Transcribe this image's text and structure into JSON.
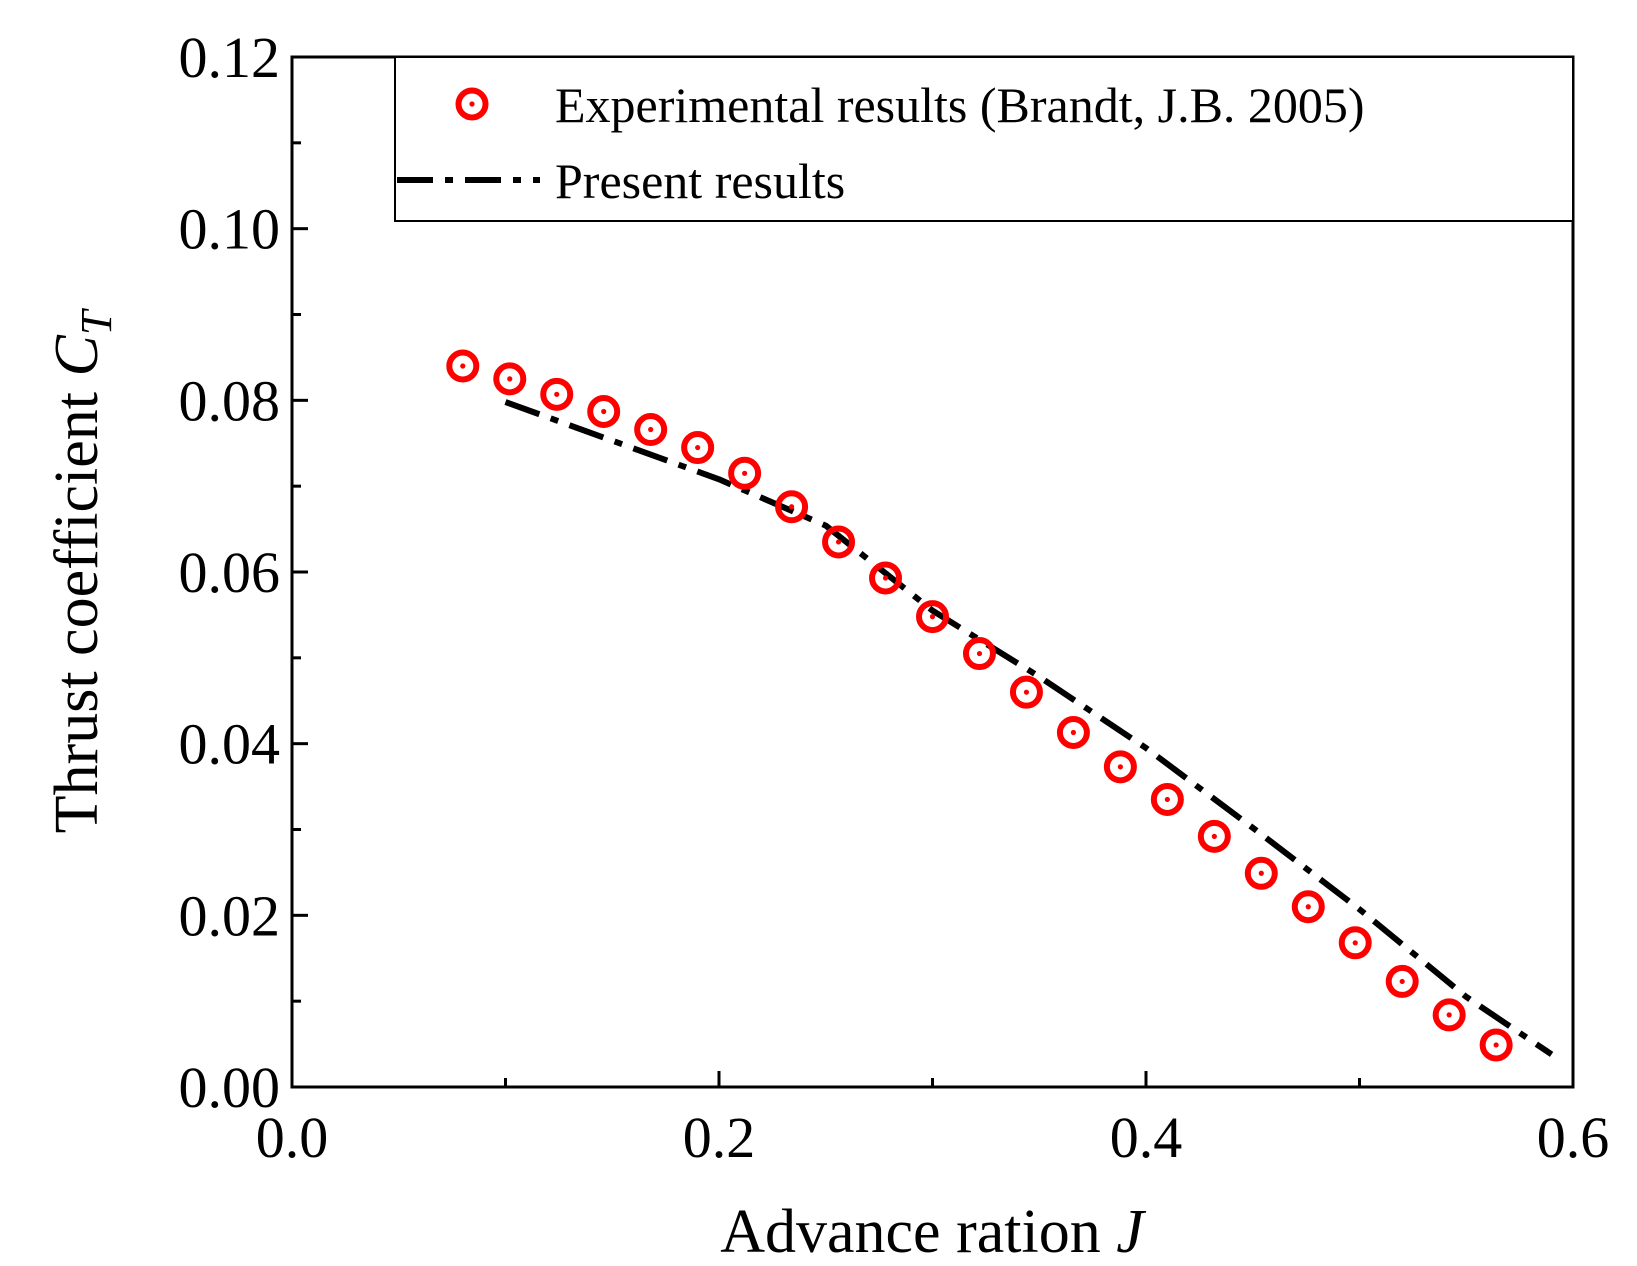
{
  "chart_data": {
    "type": "scatter",
    "title": "",
    "xlabel": "Advance ration",
    "xlabel_var": "J",
    "ylabel": "Thrust coefficient",
    "ylabel_var": "C",
    "ylabel_sub": "T",
    "xlim": [
      0.0,
      0.6
    ],
    "ylim": [
      0.0,
      0.12
    ],
    "x_ticks": [
      "0.0",
      "0.2",
      "0.4",
      "0.6"
    ],
    "y_ticks": [
      "0.00",
      "0.02",
      "0.04",
      "0.06",
      "0.08",
      "0.10",
      "0.12"
    ],
    "legend_position": "top-right",
    "series": [
      {
        "name": "Experimental results (Brandt, J.B. 2005)",
        "kind": "markers",
        "color": "#ff0000",
        "x": [
          0.08,
          0.102,
          0.124,
          0.146,
          0.168,
          0.19,
          0.212,
          0.234,
          0.256,
          0.278,
          0.3,
          0.322,
          0.344,
          0.366,
          0.388,
          0.41,
          0.432,
          0.454,
          0.476,
          0.498,
          0.52,
          0.542,
          0.564
        ],
        "y": [
          0.084,
          0.0825,
          0.0807,
          0.0787,
          0.0766,
          0.0745,
          0.0715,
          0.0676,
          0.0635,
          0.0593,
          0.0548,
          0.0505,
          0.046,
          0.0413,
          0.0373,
          0.0335,
          0.0292,
          0.0249,
          0.021,
          0.0168,
          0.0123,
          0.0084,
          0.0049
        ]
      },
      {
        "name": "Present results",
        "kind": "line",
        "color": "#000000",
        "x": [
          0.1,
          0.2,
          0.25,
          0.3,
          0.35,
          0.4,
          0.45,
          0.5,
          0.55,
          0.59
        ],
        "y": [
          0.0798,
          0.0708,
          0.0654,
          0.0555,
          0.0478,
          0.0395,
          0.0302,
          0.0207,
          0.0105,
          0.0038
        ]
      }
    ]
  }
}
